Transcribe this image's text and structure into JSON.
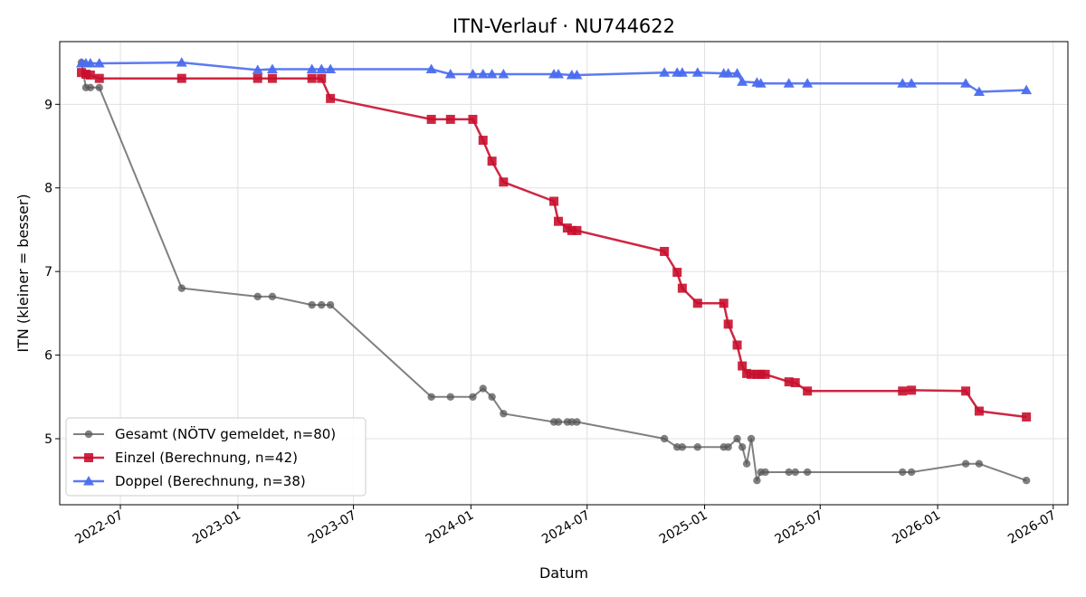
{
  "chart_data": {
    "type": "line",
    "title": "ITN-Verlauf · NU744622",
    "xlabel": "Datum",
    "ylabel": "ITN  (kleiner = besser)",
    "xlim": [
      "2022-03-28",
      "2026-07-24"
    ],
    "ylim": [
      4.21,
      9.75
    ],
    "grid": true,
    "legend_position": "lower-left",
    "x_ticks": [
      {
        "date": "2022-07-01",
        "label": "2022-07"
      },
      {
        "date": "2023-01-01",
        "label": "2023-01"
      },
      {
        "date": "2023-07-01",
        "label": "2023-07"
      },
      {
        "date": "2024-01-01",
        "label": "2024-01"
      },
      {
        "date": "2024-07-01",
        "label": "2024-07"
      },
      {
        "date": "2025-01-01",
        "label": "2025-01"
      },
      {
        "date": "2025-07-01",
        "label": "2025-07"
      },
      {
        "date": "2026-01-01",
        "label": "2026-01"
      },
      {
        "date": "2026-07-01",
        "label": "2026-07"
      }
    ],
    "y_ticks": [
      5,
      6,
      7,
      8,
      9
    ],
    "series": [
      {
        "name": "Gesamt (NÖTV gemeldet, n=80)",
        "color": "#555555",
        "marker": "circle",
        "points": [
          [
            "2022-05-01",
            9.5
          ],
          [
            "2022-05-08",
            9.2
          ],
          [
            "2022-05-15",
            9.2
          ],
          [
            "2022-05-29",
            9.2
          ],
          [
            "2022-10-05",
            6.8
          ],
          [
            "2023-02-01",
            6.7
          ],
          [
            "2023-02-24",
            6.7
          ],
          [
            "2023-04-27",
            6.6
          ],
          [
            "2023-05-12",
            6.6
          ],
          [
            "2023-05-26",
            6.6
          ],
          [
            "2023-10-31",
            5.5
          ],
          [
            "2023-11-30",
            5.5
          ],
          [
            "2024-01-04",
            5.5
          ],
          [
            "2024-01-20",
            5.6
          ],
          [
            "2024-02-03",
            5.5
          ],
          [
            "2024-02-21",
            5.3
          ],
          [
            "2024-05-10",
            5.2
          ],
          [
            "2024-05-17",
            5.2
          ],
          [
            "2024-05-31",
            5.2
          ],
          [
            "2024-06-07",
            5.2
          ],
          [
            "2024-06-15",
            5.2
          ],
          [
            "2024-10-30",
            5.0
          ],
          [
            "2024-11-19",
            4.9
          ],
          [
            "2024-11-27",
            4.9
          ],
          [
            "2024-12-21",
            4.9
          ],
          [
            "2025-01-31",
            4.9
          ],
          [
            "2025-02-07",
            4.9
          ],
          [
            "2025-02-21",
            5.0
          ],
          [
            "2025-03-01",
            4.9
          ],
          [
            "2025-03-08",
            4.7
          ],
          [
            "2025-03-15",
            5.0
          ],
          [
            "2025-03-24",
            4.5
          ],
          [
            "2025-03-30",
            4.6
          ],
          [
            "2025-04-06",
            4.6
          ],
          [
            "2025-05-13",
            4.6
          ],
          [
            "2025-05-23",
            4.6
          ],
          [
            "2025-06-11",
            4.6
          ],
          [
            "2025-11-07",
            4.6
          ],
          [
            "2025-11-21",
            4.6
          ],
          [
            "2026-02-14",
            4.7
          ],
          [
            "2026-03-07",
            4.7
          ],
          [
            "2026-05-20",
            4.5
          ]
        ]
      },
      {
        "name": "Einzel (Berechnung, n=42)",
        "color": "#c8102e",
        "marker": "square",
        "points": [
          [
            "2022-05-01",
            9.38
          ],
          [
            "2022-05-08",
            9.36
          ],
          [
            "2022-05-15",
            9.35
          ],
          [
            "2022-05-29",
            9.31
          ],
          [
            "2022-10-05",
            9.31
          ],
          [
            "2023-02-01",
            9.31
          ],
          [
            "2023-02-24",
            9.31
          ],
          [
            "2023-04-27",
            9.31
          ],
          [
            "2023-05-12",
            9.31
          ],
          [
            "2023-05-26",
            9.07
          ],
          [
            "2023-10-31",
            8.82
          ],
          [
            "2023-11-30",
            8.82
          ],
          [
            "2024-01-04",
            8.82
          ],
          [
            "2024-01-20",
            8.57
          ],
          [
            "2024-02-03",
            8.32
          ],
          [
            "2024-02-21",
            8.07
          ],
          [
            "2024-05-10",
            7.84
          ],
          [
            "2024-05-17",
            7.6
          ],
          [
            "2024-05-31",
            7.52
          ],
          [
            "2024-06-07",
            7.49
          ],
          [
            "2024-06-15",
            7.49
          ],
          [
            "2024-10-30",
            7.24
          ],
          [
            "2024-11-19",
            6.99
          ],
          [
            "2024-11-27",
            6.8
          ],
          [
            "2024-12-21",
            6.62
          ],
          [
            "2025-01-31",
            6.62
          ],
          [
            "2025-02-07",
            6.37
          ],
          [
            "2025-02-21",
            6.12
          ],
          [
            "2025-03-01",
            5.87
          ],
          [
            "2025-03-08",
            5.78
          ],
          [
            "2025-03-15",
            5.77
          ],
          [
            "2025-03-24",
            5.77
          ],
          [
            "2025-03-30",
            5.77
          ],
          [
            "2025-04-06",
            5.77
          ],
          [
            "2025-05-13",
            5.68
          ],
          [
            "2025-05-23",
            5.67
          ],
          [
            "2025-06-11",
            5.57
          ],
          [
            "2025-11-07",
            5.57
          ],
          [
            "2025-11-21",
            5.58
          ],
          [
            "2026-02-14",
            5.57
          ],
          [
            "2026-03-07",
            5.33
          ],
          [
            "2026-05-20",
            5.26
          ]
        ]
      },
      {
        "name": "Doppel (Berechnung, n=38)",
        "color": "#4a6cf0",
        "marker": "triangle",
        "points": [
          [
            "2022-05-01",
            9.49
          ],
          [
            "2022-05-08",
            9.49
          ],
          [
            "2022-05-15",
            9.49
          ],
          [
            "2022-05-29",
            9.49
          ],
          [
            "2022-10-05",
            9.5
          ],
          [
            "2023-02-01",
            9.41
          ],
          [
            "2023-02-24",
            9.42
          ],
          [
            "2023-04-27",
            9.42
          ],
          [
            "2023-05-12",
            9.42
          ],
          [
            "2023-05-26",
            9.42
          ],
          [
            "2023-10-31",
            9.42
          ],
          [
            "2023-11-30",
            9.36
          ],
          [
            "2024-01-04",
            9.36
          ],
          [
            "2024-01-20",
            9.36
          ],
          [
            "2024-02-03",
            9.36
          ],
          [
            "2024-02-21",
            9.36
          ],
          [
            "2024-05-10",
            9.36
          ],
          [
            "2024-05-17",
            9.36
          ],
          [
            "2024-06-07",
            9.35
          ],
          [
            "2024-06-15",
            9.35
          ],
          [
            "2024-10-30",
            9.38
          ],
          [
            "2024-11-19",
            9.38
          ],
          [
            "2024-11-27",
            9.38
          ],
          [
            "2024-12-21",
            9.38
          ],
          [
            "2025-01-31",
            9.37
          ],
          [
            "2025-02-07",
            9.37
          ],
          [
            "2025-02-21",
            9.37
          ],
          [
            "2025-03-01",
            9.27
          ],
          [
            "2025-03-24",
            9.26
          ],
          [
            "2025-03-30",
            9.25
          ],
          [
            "2025-05-13",
            9.25
          ],
          [
            "2025-06-11",
            9.25
          ],
          [
            "2025-11-07",
            9.25
          ],
          [
            "2025-11-21",
            9.25
          ],
          [
            "2026-02-14",
            9.25
          ],
          [
            "2026-03-07",
            9.15
          ],
          [
            "2026-05-20",
            9.17
          ]
        ]
      }
    ]
  }
}
